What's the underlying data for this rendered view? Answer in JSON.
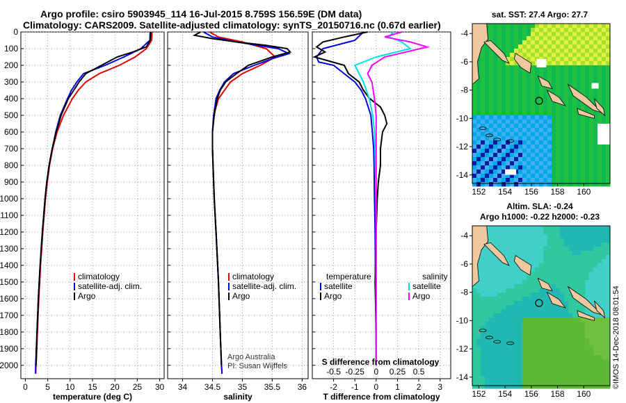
{
  "header": {
    "line1": "Argo profile: csiro 5903945_114 16-Jul-2015 8.759S 156.59E (DM data)",
    "line2": "Climatology: CARS2009. Satellite-adjusted climatology: synTS_20150716.nc (0.67d earlier)"
  },
  "colors": {
    "climatology": "#e00000",
    "satellite": "#0000e0",
    "argo": "#000000",
    "sat_salinity": "#00e0e0",
    "argo_salinity_diff": "#ff00ff",
    "land": "#f0c8a0",
    "ocean_sla": "#20c0a0"
  },
  "chart_data": [
    {
      "type": "line",
      "id": "temperature",
      "xlabel": "temperature (deg C)",
      "ylabel": "",
      "xlim": [
        -1,
        31
      ],
      "ylim": [
        2080,
        0
      ],
      "xticks": [
        "0",
        "5",
        "10",
        "15",
        "20",
        "25",
        "30"
      ],
      "xtick_values": [
        0,
        5,
        10,
        15,
        20,
        25,
        30
      ],
      "yticks": [
        "0",
        "100",
        "200",
        "300",
        "400",
        "500",
        "600",
        "700",
        "800",
        "900",
        "1000",
        "1100",
        "1200",
        "1300",
        "1400",
        "1500",
        "1600",
        "1700",
        "1800",
        "1900",
        "2000"
      ],
      "ytick_values": [
        0,
        100,
        200,
        300,
        400,
        500,
        600,
        700,
        800,
        900,
        1000,
        1100,
        1200,
        1300,
        1400,
        1500,
        1600,
        1700,
        1800,
        1900,
        2000
      ],
      "legend": [
        "climatology",
        "satellite-adj. clim.",
        "Argo"
      ],
      "series": [
        {
          "name": "climatology",
          "color": "#e00000",
          "depth": [
            0,
            50,
            100,
            150,
            200,
            250,
            300,
            350,
            400,
            500,
            600,
            700,
            800,
            900,
            1000,
            1200,
            1400,
            1600,
            1800,
            2000,
            2050
          ],
          "values": [
            28.3,
            28.2,
            27.0,
            24.5,
            21.0,
            16.5,
            13.5,
            11.8,
            10.5,
            8.5,
            7.1,
            6.1,
            5.4,
            4.9,
            4.5,
            3.9,
            3.4,
            3.0,
            2.7,
            2.4,
            2.3
          ]
        },
        {
          "name": "satellite-adj. clim.",
          "color": "#0000e0",
          "depth": [
            0,
            50,
            100,
            150,
            200,
            250,
            300,
            350,
            400,
            500,
            600,
            700,
            800,
            900,
            1000,
            1200,
            1400,
            1600,
            1800,
            2000,
            2050
          ],
          "values": [
            27.9,
            27.8,
            25.8,
            22.0,
            17.8,
            13.0,
            11.5,
            10.3,
            9.4,
            7.8,
            6.8,
            6.0,
            5.3,
            4.8,
            4.4,
            3.8,
            3.3,
            2.9,
            2.6,
            2.3,
            2.3
          ]
        },
        {
          "name": "Argo",
          "color": "#000000",
          "depth": [
            0,
            50,
            90,
            120,
            150,
            200,
            250,
            300,
            350,
            400,
            500,
            600,
            700,
            800,
            900,
            1000,
            1200,
            1400,
            1600,
            1800,
            2000
          ],
          "values": [
            28.0,
            27.9,
            27.0,
            24.0,
            20.5,
            17.0,
            13.5,
            12.0,
            10.8,
            9.6,
            8.0,
            6.9,
            6.0,
            5.3,
            4.8,
            4.4,
            3.8,
            3.3,
            2.9,
            2.6,
            2.4
          ]
        }
      ]
    },
    {
      "type": "line",
      "id": "salinity",
      "xlabel": "salinity",
      "xlim": [
        33.75,
        36.1
      ],
      "ylim": [
        2080,
        0
      ],
      "xticks": [
        "34",
        "34.5",
        "35",
        "35.5",
        "36"
      ],
      "xtick_values": [
        34,
        34.5,
        35,
        35.5,
        36
      ],
      "legend": [
        "climatology",
        "satellite-adj. clim.",
        "Argo"
      ],
      "credit": [
        "Argo Australia",
        "PI: Susan Wijffels"
      ],
      "series": [
        {
          "name": "climatology",
          "color": "#e00000",
          "depth": [
            0,
            30,
            60,
            100,
            150,
            200,
            250,
            300,
            350,
            400,
            500,
            600,
            700,
            800,
            1000,
            1200,
            1500,
            1800,
            2000,
            2050
          ],
          "values": [
            34.45,
            34.6,
            35.0,
            35.4,
            35.55,
            35.3,
            35.0,
            34.8,
            34.7,
            34.6,
            34.52,
            34.5,
            34.5,
            34.51,
            34.53,
            34.56,
            34.6,
            34.63,
            34.65,
            34.66
          ]
        },
        {
          "name": "satellite-adj. clim.",
          "color": "#0000e0",
          "depth": [
            0,
            30,
            60,
            100,
            130,
            160,
            200,
            250,
            300,
            350,
            400,
            500,
            600,
            700,
            800,
            1000,
            1200,
            1500,
            1800,
            2000,
            2050
          ],
          "values": [
            34.35,
            34.5,
            34.9,
            35.6,
            35.78,
            35.5,
            35.2,
            34.85,
            34.7,
            34.62,
            34.56,
            34.52,
            34.5,
            34.5,
            34.51,
            34.53,
            34.56,
            34.6,
            34.63,
            34.65,
            34.66
          ]
        },
        {
          "name": "Argo",
          "color": "#000000",
          "depth": [
            0,
            20,
            40,
            60,
            80,
            100,
            120,
            150,
            200,
            250,
            300,
            350,
            400,
            500,
            600,
            700,
            800,
            1000,
            1200,
            1500,
            1800,
            2000
          ],
          "values": [
            34.3,
            34.2,
            34.5,
            34.9,
            35.4,
            35.75,
            35.8,
            35.5,
            35.1,
            34.9,
            34.72,
            34.63,
            34.58,
            34.53,
            34.5,
            34.5,
            34.51,
            34.53,
            34.56,
            34.6,
            34.63,
            34.65
          ]
        }
      ]
    },
    {
      "type": "line",
      "id": "differences",
      "xlabel": "T difference from climatology",
      "xlabel_top": "S difference from climatology",
      "xlim": [
        -3,
        3.5
      ],
      "ylim": [
        2080,
        0
      ],
      "xticks": [
        "-2",
        "-1",
        "0",
        "1",
        "2",
        "3"
      ],
      "xtick_values": [
        -2,
        -1,
        0,
        1,
        2,
        3
      ],
      "sticks": [
        "-0.5",
        "-0.25",
        "0",
        "0.25",
        "0.5"
      ],
      "stick_values": [
        -0.5,
        -0.25,
        0,
        0.25,
        0.5
      ],
      "legend_left_title": "temperature",
      "legend_left": [
        "satellite",
        "Argo"
      ],
      "legend_right_title": "salinity",
      "legend_right": [
        "satellite",
        "Argo"
      ],
      "series": [
        {
          "name": "T satellite",
          "color": "#0000e0",
          "depth": [
            0,
            50,
            100,
            150,
            180,
            200,
            250,
            300,
            350,
            400,
            500,
            600,
            700,
            800,
            1000,
            1200,
            1500,
            2000
          ],
          "values": [
            -0.6,
            -1.0,
            -2.5,
            -2.8,
            -2.7,
            -2.0,
            -1.5,
            -1.0,
            -0.7,
            -0.5,
            -0.25,
            -0.18,
            -0.12,
            -0.1,
            -0.08,
            -0.05,
            -0.03,
            0.0
          ]
        },
        {
          "name": "T Argo",
          "color": "#000000",
          "depth": [
            0,
            30,
            60,
            90,
            120,
            150,
            200,
            250,
            300,
            350,
            400,
            450,
            500,
            550,
            600,
            700,
            800,
            900,
            1000,
            1200,
            1500,
            1800,
            2000
          ],
          "values": [
            -0.4,
            -1.5,
            -2.5,
            -2.8,
            -2.4,
            -2.9,
            -1.5,
            -1.3,
            -0.8,
            -0.6,
            -0.3,
            0.2,
            0.4,
            0.5,
            0.3,
            0.2,
            0.2,
            0.1,
            0.05,
            0.0,
            -0.05,
            0.0,
            0.0
          ]
        },
        {
          "name": "S satellite",
          "color": "#00e0e0",
          "depth": [
            0,
            30,
            60,
            100,
            150,
            200,
            250,
            300,
            400,
            500,
            600,
            800,
            1000,
            1500,
            2000
          ],
          "values": [
            0.2,
            0.15,
            0.3,
            0.4,
            0.0,
            -0.25,
            -0.2,
            -0.15,
            -0.08,
            -0.04,
            -0.02,
            -0.01,
            0.0,
            0.0,
            0.0
          ]
        },
        {
          "name": "S Argo",
          "color": "#ff00ff",
          "depth": [
            0,
            30,
            60,
            90,
            120,
            150,
            200,
            250,
            300,
            400,
            500,
            600,
            800,
            1000,
            1500,
            2000
          ],
          "values": [
            0.3,
            0.1,
            0.4,
            0.6,
            0.35,
            0.1,
            -0.05,
            -0.1,
            -0.05,
            -0.02,
            0.0,
            0.0,
            0.0,
            0.0,
            0.0,
            0.0
          ]
        }
      ]
    },
    {
      "type": "heatmap",
      "id": "sst-map",
      "title": "sat. SST: 27.4 Argo: 27.7",
      "xticks": [
        "152",
        "154",
        "156",
        "158",
        "160"
      ],
      "xtick_values": [
        152,
        154,
        156,
        158,
        160
      ],
      "yticks": [
        "-4",
        "-6",
        "-8",
        "-10",
        "-12",
        "-14"
      ],
      "ytick_values": [
        -4,
        -6,
        -8,
        -10,
        -12,
        -14
      ],
      "xlim": [
        151.5,
        162
      ],
      "ylim": [
        -14.6,
        -3.3
      ],
      "argo_position": {
        "lon": 156.59,
        "lat": -8.759
      }
    },
    {
      "type": "heatmap",
      "id": "sla-map",
      "title": "Altim. SLA: -0.24",
      "subtitle": "Argo h1000: -0.22 h2000: -0.23",
      "xticks": [
        "152",
        "154",
        "156",
        "158",
        "160"
      ],
      "xtick_values": [
        152,
        154,
        156,
        158,
        160
      ],
      "yticks": [
        "-4",
        "-6",
        "-8",
        "-10",
        "-12",
        "-14"
      ],
      "ytick_values": [
        -4,
        -6,
        -8,
        -10,
        -12,
        -14
      ],
      "xlim": [
        151.5,
        162
      ],
      "ylim": [
        -14.6,
        -3.3
      ],
      "argo_position": {
        "lon": 156.59,
        "lat": -8.759
      }
    }
  ],
  "footer": {
    "credit": "©IMOS 14-Dec-2018 08:01:54"
  }
}
